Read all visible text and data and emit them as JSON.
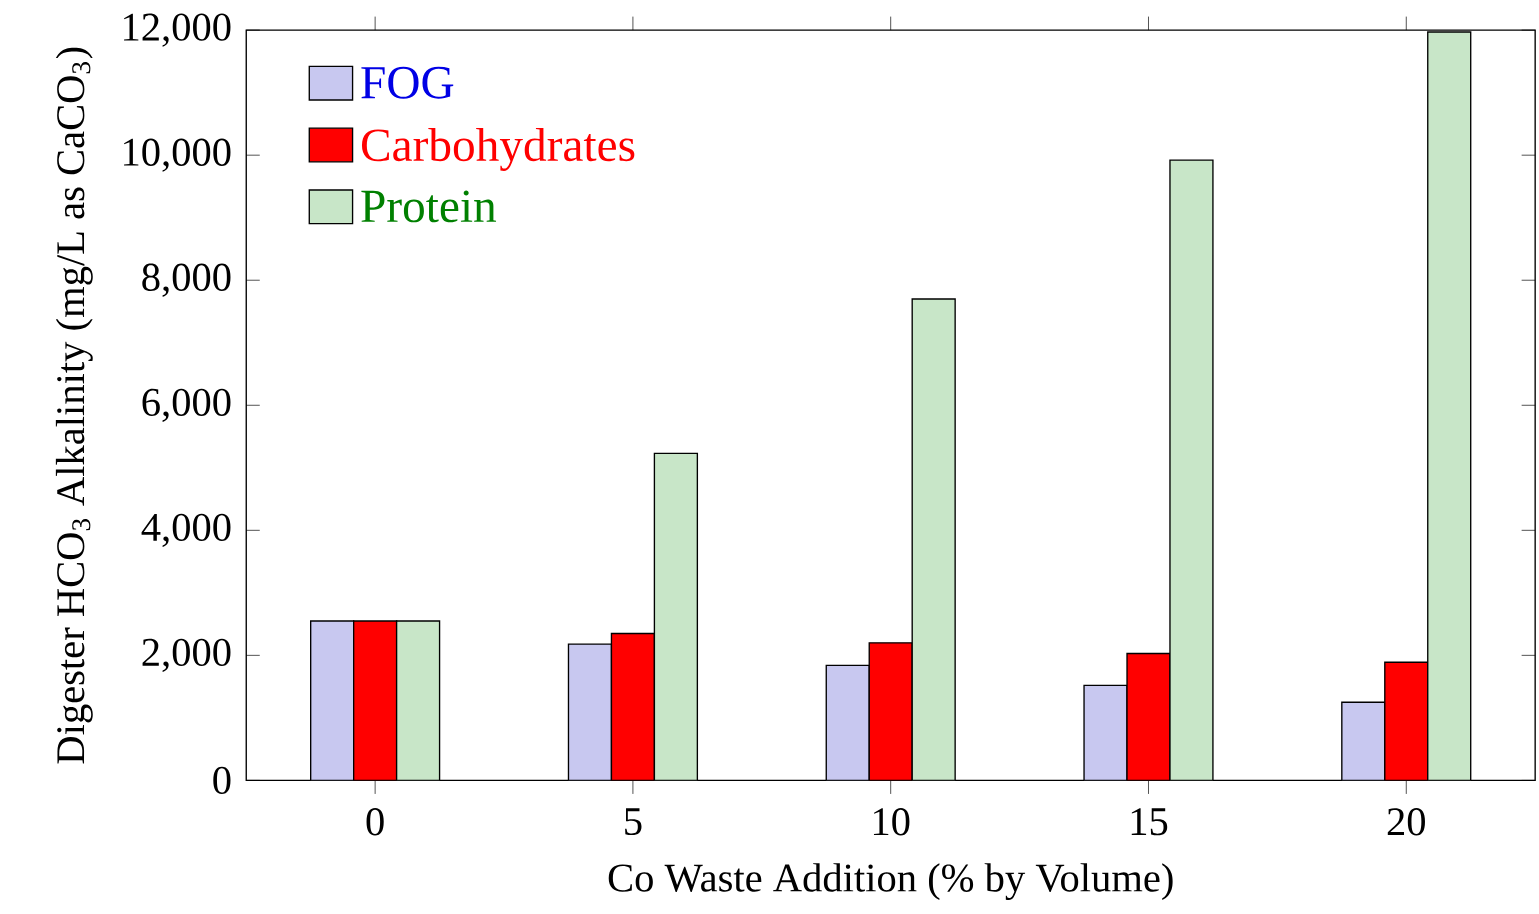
{
  "chart_data": {
    "type": "bar",
    "xlabel": "Co Waste Addition (% by Volume)",
    "ylabel": "Digester HCO$_{3}$ Alkalinity (mg/L as CaCO$_{3}$)",
    "categories": [
      "0",
      "5",
      "10",
      "15",
      "20"
    ],
    "series": [
      {
        "name": "FOG",
        "color": "#c8c8f0",
        "values": [
          2550,
          2180,
          1840,
          1520,
          1250
        ]
      },
      {
        "name": "Carbohydrates",
        "color": "#ff0000",
        "values": [
          2550,
          2350,
          2200,
          2030,
          1890
        ]
      },
      {
        "name": "Protein",
        "color": "#c8e6c8",
        "values": [
          2550,
          5230,
          7700,
          9920,
          11970
        ]
      }
    ],
    "ylim": [
      0,
      12000
    ],
    "yticks": [
      {
        "value": 0,
        "label": "0"
      },
      {
        "value": 2000,
        "label": "2,000"
      },
      {
        "value": 4000,
        "label": "4,000"
      },
      {
        "value": 6000,
        "label": "6,000"
      },
      {
        "value": 8000,
        "label": "8,000"
      },
      {
        "value": 10000,
        "label": "10,000"
      },
      {
        "value": 12000,
        "label": "12,000"
      }
    ],
    "legend": "top left",
    "grid": false
  }
}
